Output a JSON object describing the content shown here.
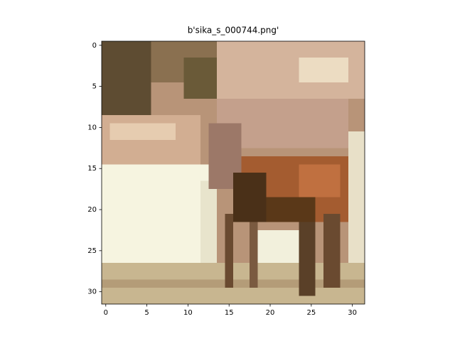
{
  "chart_data": {
    "type": "image",
    "title": "b'sika_s_000744.png'",
    "xlim": [
      -0.5,
      31.5
    ],
    "ylim": [
      31.5,
      -0.5
    ],
    "xticks": [
      0,
      5,
      10,
      15,
      20,
      25,
      30
    ],
    "yticks": [
      0,
      5,
      10,
      15,
      20,
      25,
      30
    ]
  }
}
